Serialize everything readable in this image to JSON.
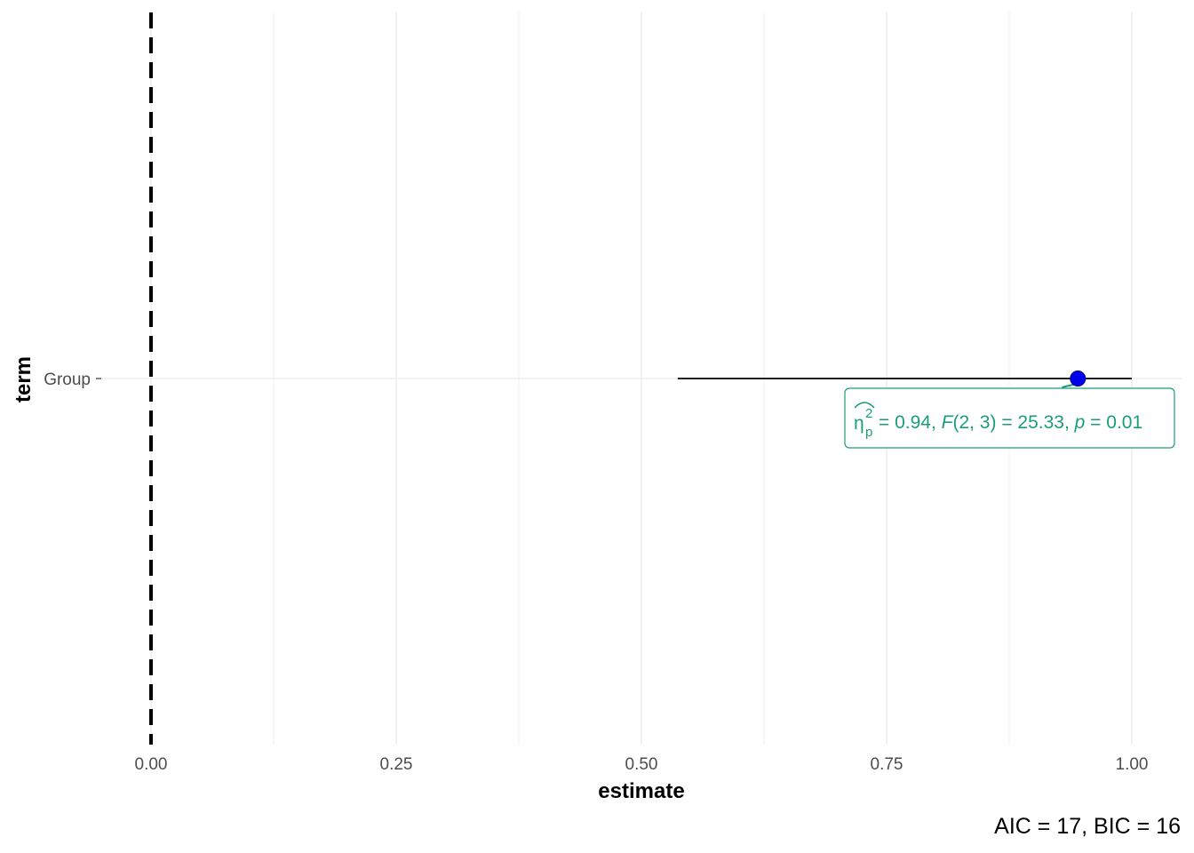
{
  "chart_data": {
    "type": "scatter",
    "xlabel": "estimate",
    "ylabel": "term",
    "xlim": [
      0.0,
      1.0
    ],
    "x_ticks": [
      "0.00",
      "0.25",
      "0.50",
      "0.75",
      "1.00"
    ],
    "y_categories": [
      "Group"
    ],
    "grid": true,
    "reference_line": {
      "x": 0.0,
      "style": "dashed"
    },
    "points": [
      {
        "term": "Group",
        "estimate": 0.945,
        "conf_low": 0.537,
        "conf_high": 1.0
      }
    ],
    "annotation": {
      "symbol": "η",
      "superscript": "2",
      "subscript": "p",
      "text": {
        "eq1": "= 0.94, ",
        "F": "F",
        "df": "(2, 3)",
        "eq2": " = 25.33, ",
        "p": "p",
        "eq3": " = 0.01"
      }
    },
    "caption": "AIC = 17, BIC = 16",
    "colors": {
      "point": "#0000ee",
      "label": "#1b9e77",
      "errorbar": "#000000",
      "grid": "#ebebeb",
      "refline": "#000000"
    }
  }
}
